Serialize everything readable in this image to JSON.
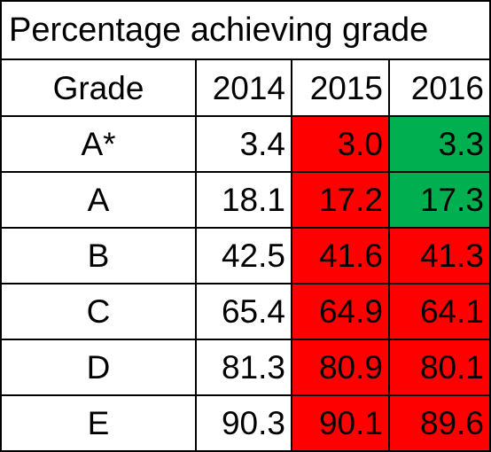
{
  "title": "Percentage achieving grade",
  "header": {
    "grade_label": "Grade",
    "years": [
      "2014",
      "2015",
      "2016"
    ]
  },
  "colors": {
    "red": "#ff0000",
    "green": "#00b050",
    "white": "#ffffff"
  },
  "rows": [
    {
      "grade": "A*",
      "values": [
        "3.4",
        "3.0",
        "3.3"
      ],
      "fills": [
        "white",
        "red",
        "green"
      ]
    },
    {
      "grade": "A",
      "values": [
        "18.1",
        "17.2",
        "17.3"
      ],
      "fills": [
        "white",
        "red",
        "green"
      ]
    },
    {
      "grade": "B",
      "values": [
        "42.5",
        "41.6",
        "41.3"
      ],
      "fills": [
        "white",
        "red",
        "red"
      ]
    },
    {
      "grade": "C",
      "values": [
        "65.4",
        "64.9",
        "64.1"
      ],
      "fills": [
        "white",
        "red",
        "red"
      ]
    },
    {
      "grade": "D",
      "values": [
        "81.3",
        "80.9",
        "80.1"
      ],
      "fills": [
        "white",
        "red",
        "red"
      ]
    },
    {
      "grade": "E",
      "values": [
        "90.3",
        "90.1",
        "89.6"
      ],
      "fills": [
        "white",
        "red",
        "red"
      ]
    }
  ]
}
